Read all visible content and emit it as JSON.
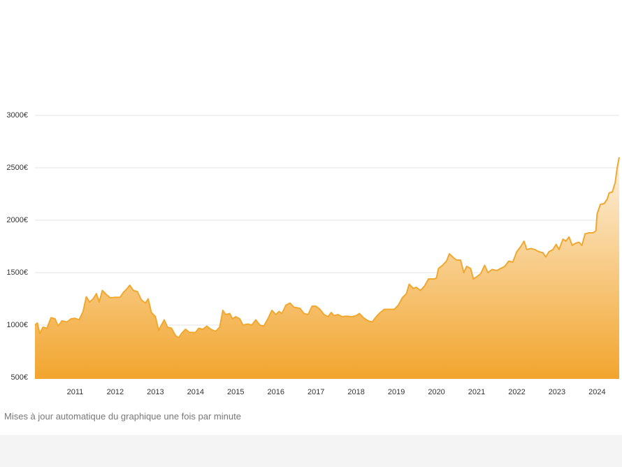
{
  "chart_data": {
    "type": "area",
    "x": [
      2010.0,
      2010.06,
      2010.12,
      2010.2,
      2010.3,
      2010.4,
      2010.5,
      2010.58,
      2010.67,
      2010.8,
      2010.9,
      2011.0,
      2011.1,
      2011.2,
      2011.28,
      2011.36,
      2011.45,
      2011.53,
      2011.6,
      2011.68,
      2011.78,
      2011.88,
      2012.0,
      2012.12,
      2012.2,
      2012.3,
      2012.36,
      2012.45,
      2012.55,
      2012.65,
      2012.75,
      2012.82,
      2012.9,
      2013.0,
      2013.08,
      2013.15,
      2013.22,
      2013.3,
      2013.4,
      2013.5,
      2013.58,
      2013.65,
      2013.75,
      2013.85,
      2014.0,
      2014.08,
      2014.18,
      2014.28,
      2014.38,
      2014.5,
      2014.6,
      2014.68,
      2014.75,
      2014.85,
      2014.92,
      2015.0,
      2015.1,
      2015.18,
      2015.3,
      2015.4,
      2015.5,
      2015.6,
      2015.7,
      2015.8,
      2015.9,
      2016.0,
      2016.08,
      2016.15,
      2016.25,
      2016.35,
      2016.45,
      2016.6,
      2016.7,
      2016.8,
      2016.9,
      2017.0,
      2017.1,
      2017.2,
      2017.3,
      2017.38,
      2017.45,
      2017.55,
      2017.65,
      2017.75,
      2017.9,
      2018.0,
      2018.08,
      2018.18,
      2018.3,
      2018.4,
      2018.5,
      2018.6,
      2018.7,
      2018.8,
      2018.95,
      2019.05,
      2019.15,
      2019.25,
      2019.32,
      2019.42,
      2019.5,
      2019.6,
      2019.7,
      2019.8,
      2019.95,
      2020.0,
      2020.05,
      2020.15,
      2020.25,
      2020.32,
      2020.4,
      2020.5,
      2020.6,
      2020.68,
      2020.75,
      2020.85,
      2020.92,
      2021.0,
      2021.1,
      2021.2,
      2021.28,
      2021.38,
      2021.5,
      2021.6,
      2021.7,
      2021.8,
      2021.9,
      2022.0,
      2022.1,
      2022.18,
      2022.25,
      2022.35,
      2022.45,
      2022.55,
      2022.65,
      2022.72,
      2022.8,
      2022.9,
      2022.98,
      2023.05,
      2023.15,
      2023.22,
      2023.3,
      2023.38,
      2023.46,
      2023.55,
      2023.62,
      2023.7,
      2023.8,
      2023.9,
      2023.97,
      2024.0,
      2024.08,
      2024.18,
      2024.25,
      2024.3,
      2024.38,
      2024.45,
      2024.5,
      2024.55
    ],
    "values": [
      1000,
      1020,
      920,
      980,
      970,
      1070,
      1060,
      990,
      1040,
      1030,
      1060,
      1065,
      1050,
      1130,
      1270,
      1220,
      1250,
      1300,
      1220,
      1330,
      1290,
      1260,
      1265,
      1265,
      1310,
      1350,
      1380,
      1330,
      1320,
      1240,
      1210,
      1250,
      1120,
      1080,
      950,
      1000,
      1050,
      980,
      970,
      900,
      880,
      920,
      960,
      930,
      930,
      970,
      960,
      990,
      960,
      940,
      980,
      1140,
      1100,
      1110,
      1060,
      1080,
      1060,
      1000,
      1010,
      1000,
      1050,
      1000,
      990,
      1060,
      1140,
      1100,
      1130,
      1110,
      1190,
      1210,
      1170,
      1160,
      1110,
      1100,
      1180,
      1180,
      1150,
      1100,
      1080,
      1120,
      1090,
      1100,
      1080,
      1085,
      1080,
      1090,
      1110,
      1070,
      1040,
      1030,
      1080,
      1120,
      1150,
      1150,
      1150,
      1190,
      1260,
      1300,
      1390,
      1350,
      1360,
      1330,
      1370,
      1440,
      1440,
      1450,
      1540,
      1570,
      1610,
      1680,
      1650,
      1620,
      1620,
      1500,
      1560,
      1540,
      1440,
      1460,
      1490,
      1570,
      1500,
      1530,
      1520,
      1540,
      1560,
      1610,
      1600,
      1700,
      1750,
      1800,
      1720,
      1730,
      1720,
      1700,
      1690,
      1650,
      1700,
      1720,
      1770,
      1720,
      1820,
      1800,
      1840,
      1760,
      1780,
      1790,
      1760,
      1870,
      1880,
      1880,
      1900,
      2060,
      2150,
      2160,
      2200,
      2260,
      2270,
      2360,
      2500,
      2600
    ],
    "color": "#f0a830",
    "xlim": [
      2010,
      2024.55
    ],
    "xticks": [
      2011,
      2012,
      2013,
      2014,
      2015,
      2016,
      2017,
      2018,
      2019,
      2020,
      2021,
      2022,
      2023,
      2024
    ],
    "ylim": [
      500,
      3000
    ],
    "yticks": [
      {
        "value": 500,
        "label": "500€"
      },
      {
        "value": 1000,
        "label": "1000€"
      },
      {
        "value": 1500,
        "label": "1500€"
      },
      {
        "value": 2000,
        "label": "2000€"
      },
      {
        "value": 2500,
        "label": "2500€"
      },
      {
        "value": 3000,
        "label": "3000€"
      }
    ],
    "grid": true
  },
  "footer_note": "Mises à jour automatique du graphique une fois par minute"
}
